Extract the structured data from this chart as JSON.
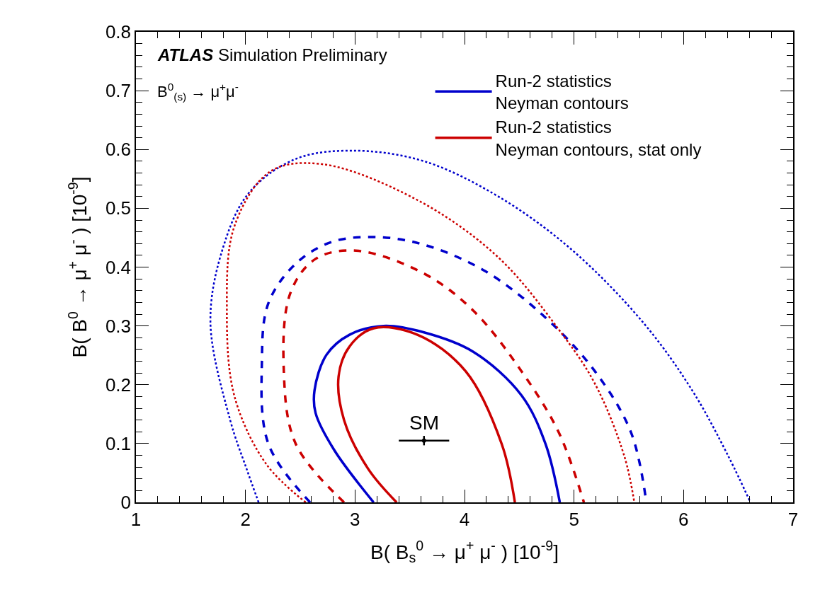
{
  "chart_data": {
    "type": "line",
    "xlabel": "B( B$_{s}$$^{0}$ → μ$^{+}$ μ$^{-}$ ) [10$^{-9}$]",
    "ylabel": "B( B$^{0}$ → μ$^{+}$ μ$^{-}$ ) [10$^{-9}$]",
    "annotations": [
      "ATLAS Simulation Preliminary",
      "B$^{0}$$_{(s)}$ → μ$^{+}$μ$^{-}$",
      {
        "text": "SM",
        "x": 3.63,
        "y": 0.105
      }
    ],
    "xlim": [
      1,
      7
    ],
    "xticks": [
      1,
      2,
      3,
      4,
      5,
      6,
      7
    ],
    "ylim": [
      0,
      0.8
    ],
    "yticks": [
      0,
      0.1,
      0.2,
      0.3,
      0.4,
      0.5,
      0.6,
      0.7,
      0.8
    ],
    "legend": "top right",
    "series": [
      {
        "name": "Run-2 statistics\nNeyman contours",
        "color": "#0000cc",
        "line_style": "solid",
        "x": [
          3.17,
          2.81,
          2.64,
          2.63,
          2.74,
          2.95,
          3.26,
          3.63,
          4.08,
          4.52,
          4.74,
          4.87
        ],
        "values": [
          0,
          0.089,
          0.152,
          0.19,
          0.251,
          0.285,
          0.3,
          0.289,
          0.256,
          0.182,
          0.099,
          0
        ]
      },
      {
        "name": "Run-2 statistics\nNeyman contours, stat only",
        "color": "#cc0000",
        "line_style": "solid",
        "x": [
          3.38,
          3.12,
          2.9,
          2.85,
          2.95,
          3.17,
          3.57,
          4.01,
          4.34,
          4.46
        ],
        "values": [
          0,
          0.057,
          0.14,
          0.214,
          0.265,
          0.296,
          0.285,
          0.223,
          0.099,
          0
        ]
      },
      {
        "color": "#0000cc",
        "line_style": "dashed",
        "x": [
          2.59,
          2.21,
          2.15,
          2.21,
          2.46,
          2.79,
          3.2,
          3.63,
          4.19,
          4.74,
          5.19,
          5.52,
          5.66
        ],
        "values": [
          0,
          0.099,
          0.24,
          0.339,
          0.406,
          0.443,
          0.451,
          0.438,
          0.393,
          0.314,
          0.223,
          0.119,
          0
        ]
      },
      {
        "color": "#cc0000",
        "line_style": "dashed",
        "x": [
          2.9,
          2.46,
          2.35,
          2.41,
          2.64,
          3.01,
          3.63,
          4.08,
          4.52,
          4.86,
          5.09
        ],
        "values": [
          0,
          0.099,
          0.223,
          0.356,
          0.414,
          0.428,
          0.389,
          0.326,
          0.223,
          0.119,
          0
        ]
      },
      {
        "color": "#0000cc",
        "line_style": "dotted",
        "x": [
          2.12,
          2.01,
          1.86,
          1.68,
          1.79,
          2.03,
          2.46,
          2.99,
          3.63,
          4.3,
          4.97,
          5.63,
          6.08,
          6.41,
          6.61
        ],
        "values": [
          0,
          0.057,
          0.14,
          0.306,
          0.43,
          0.526,
          0.584,
          0.598,
          0.58,
          0.521,
          0.431,
          0.306,
          0.19,
          0.078,
          0
        ]
      },
      {
        "color": "#cc0000",
        "line_style": "dotted",
        "x": [
          2.55,
          2.19,
          1.9,
          1.83,
          1.9,
          2.23,
          2.7,
          3.57,
          4.3,
          4.86,
          5.19,
          5.46,
          5.55
        ],
        "values": [
          0,
          0.065,
          0.18,
          0.326,
          0.47,
          0.563,
          0.575,
          0.514,
          0.418,
          0.294,
          0.202,
          0.078,
          0
        ]
      },
      {
        "type": "scatter",
        "color": "#000000",
        "x": [
          3.63
        ],
        "values": [
          0.105
        ],
        "xerrors": [
          [
            3.4,
            3.86
          ]
        ],
        "errors": [
          [
            0.097,
            0.113
          ]
        ]
      }
    ]
  }
}
